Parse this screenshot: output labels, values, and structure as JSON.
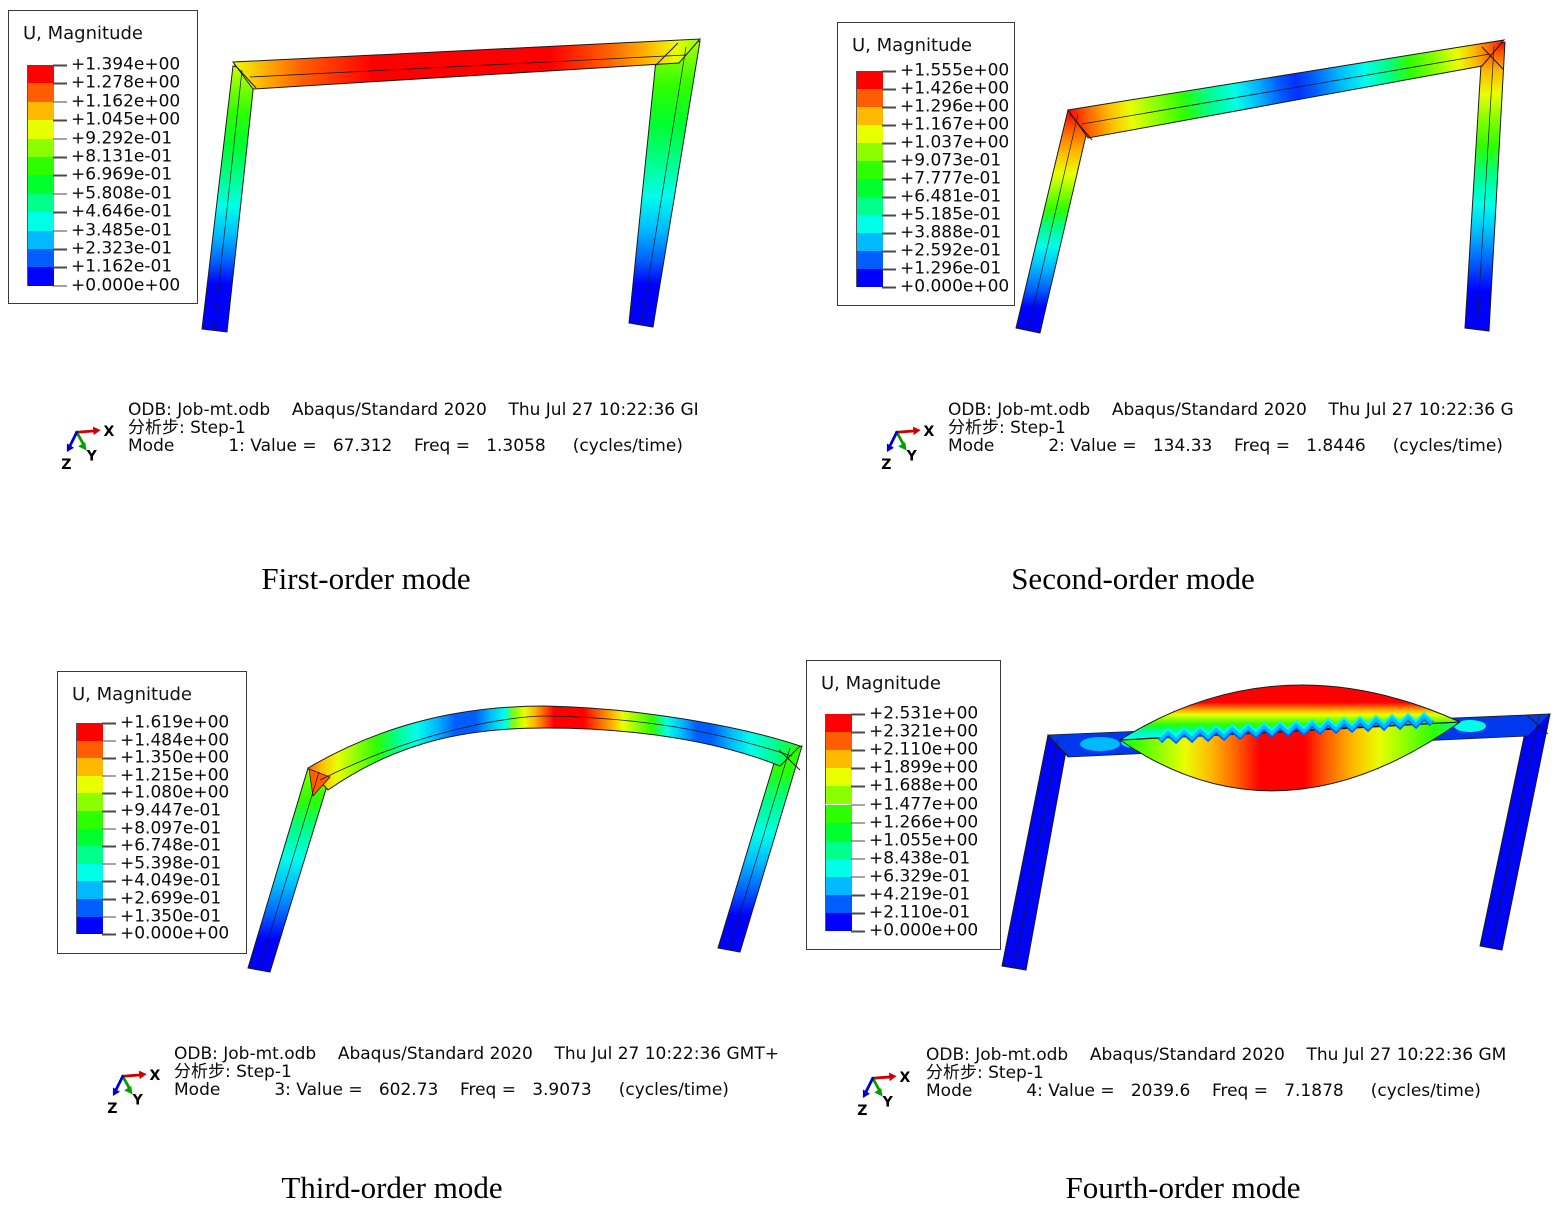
{
  "page": {
    "background": "#ffffff",
    "figure_type": "Abaqus modal analysis results, 2x2 panels"
  },
  "legend": {
    "title": "U, Magnitude"
  },
  "spectrum": {
    "colors_top_to_bottom": [
      "#FF0000",
      "#FF5D00",
      "#FFB900",
      "#E8FF00",
      "#8BFF00",
      "#2EFF00",
      "#00FF2E",
      "#00FF8B",
      "#00FFE8",
      "#00B9FF",
      "#005DFF",
      "#0000FF"
    ]
  },
  "axis_triad": {
    "x": "X",
    "y": "Y",
    "z": "Z"
  },
  "quadrants": [
    {
      "caption": "First-order mode",
      "legend_title": "U, Magnitude",
      "legend_values": [
        "+1.394e+00",
        "+1.278e+00",
        "+1.162e+00",
        "+1.045e+00",
        "+9.292e-01",
        "+8.131e-01",
        "+6.969e-01",
        "+5.808e-01",
        "+4.646e-01",
        "+3.485e-01",
        "+2.323e-01",
        "+1.162e-01",
        "+0.000e+00"
      ],
      "info_line1": "ODB: Job-mt.odb    Abaqus/Standard 2020    Thu Jul 27 10:22:36 GI",
      "info_line2": "分析步: Step-1",
      "info_line3": "Mode          1: Value =   67.312    Freq =   1.3058     (cycles/time)",
      "mode_number": "1",
      "value": "67.312",
      "freq": "1.3058",
      "freq_units": "cycles/time"
    },
    {
      "caption": "Second-order mode",
      "legend_title": "U, Magnitude",
      "legend_values": [
        "+1.555e+00",
        "+1.426e+00",
        "+1.296e+00",
        "+1.167e+00",
        "+1.037e+00",
        "+9.073e-01",
        "+7.777e-01",
        "+6.481e-01",
        "+5.185e-01",
        "+3.888e-01",
        "+2.592e-01",
        "+1.296e-01",
        "+0.000e+00"
      ],
      "info_line1": "ODB: Job-mt.odb    Abaqus/Standard 2020    Thu Jul 27 10:22:36 G",
      "info_line2": "分析步: Step-1",
      "info_line3": "Mode          2: Value =   134.33    Freq =   1.8446     (cycles/time)",
      "mode_number": "2",
      "value": "134.33",
      "freq": "1.8446",
      "freq_units": "cycles/time"
    },
    {
      "caption": "Third-order mode",
      "legend_title": "U, Magnitude",
      "legend_values": [
        "+1.619e+00",
        "+1.484e+00",
        "+1.350e+00",
        "+1.215e+00",
        "+1.080e+00",
        "+9.447e-01",
        "+8.097e-01",
        "+6.748e-01",
        "+5.398e-01",
        "+4.049e-01",
        "+2.699e-01",
        "+1.350e-01",
        "+0.000e+00"
      ],
      "info_line1": "ODB: Job-mt.odb    Abaqus/Standard 2020    Thu Jul 27 10:22:36 GMT+",
      "info_line2": "分析步: Step-1",
      "info_line3": "Mode          3: Value =   602.73    Freq =   3.9073     (cycles/time)",
      "mode_number": "3",
      "value": "602.73",
      "freq": "3.9073",
      "freq_units": "cycles/time"
    },
    {
      "caption": "Fourth-order mode",
      "legend_title": "U, Magnitude",
      "legend_values": [
        "+2.531e+00",
        "+2.321e+00",
        "+2.110e+00",
        "+1.899e+00",
        "+1.688e+00",
        "+1.477e+00",
        "+1.266e+00",
        "+1.055e+00",
        "+8.438e-01",
        "+6.329e-01",
        "+4.219e-01",
        "+2.110e-01",
        "+0.000e+00"
      ],
      "info_line1": "ODB: Job-mt.odb    Abaqus/Standard 2020    Thu Jul 27 10:22:36 GM",
      "info_line2": "分析步: Step-1",
      "info_line3": "Mode          4: Value =   2039.6    Freq =   7.1878     (cycles/time)",
      "mode_number": "4",
      "value": "2039.6",
      "freq": "7.1878",
      "freq_units": "cycles/time"
    }
  ]
}
